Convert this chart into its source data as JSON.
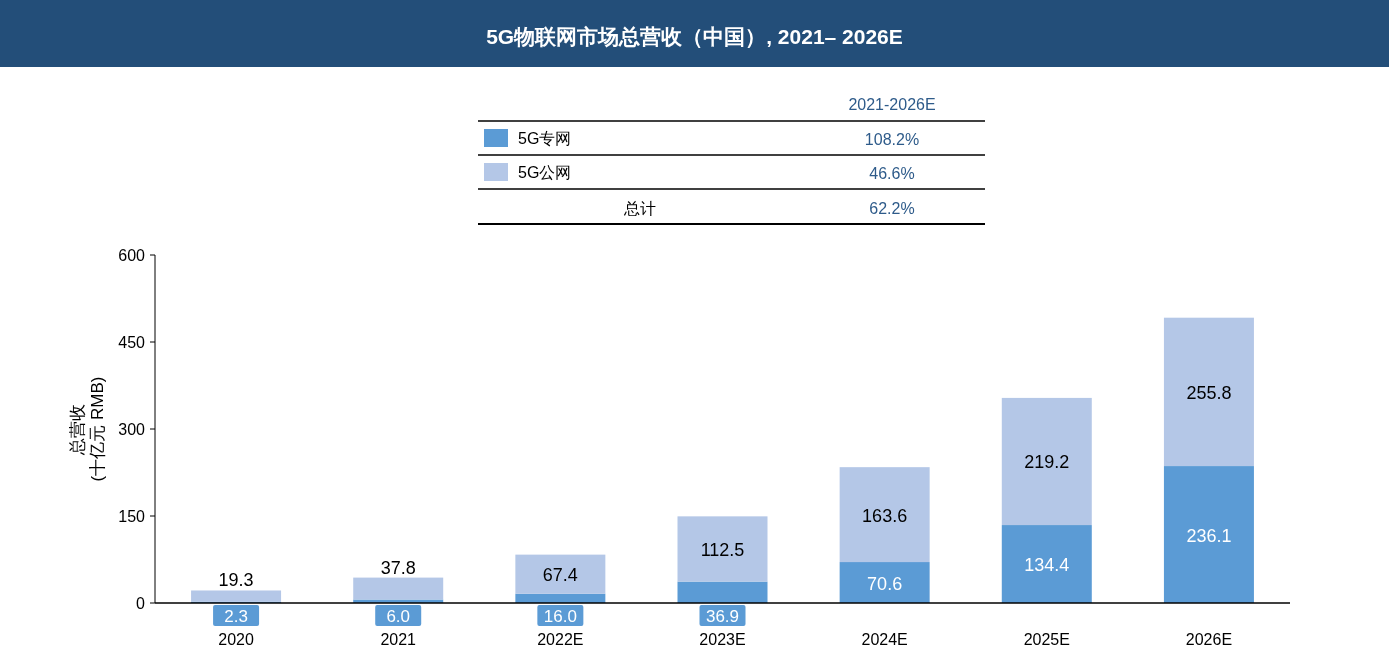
{
  "chart_data": {
    "type": "bar",
    "title": "5G物联网市场总营收（中国）, 2021– 2026E",
    "ylabel": "总营收 (十亿元 RMB)",
    "categories": [
      "2020",
      "2021",
      "2022E",
      "2023E",
      "2024E",
      "2025E",
      "2026E"
    ],
    "series": [
      {
        "name": "5G专网",
        "color": "#5b9bd5",
        "values": [
          2.3,
          6.0,
          16.0,
          36.9,
          70.6,
          134.4,
          236.1
        ],
        "value_labels": [
          "2.3",
          "6.0",
          "16.0",
          "36.9",
          "70.6",
          "134.4",
          "236.1"
        ]
      },
      {
        "name": "5G公网",
        "color": "#b4c7e7",
        "values": [
          19.3,
          37.8,
          67.4,
          112.5,
          163.6,
          219.2,
          255.8
        ],
        "value_labels": [
          "19.3",
          "37.8",
          "67.4",
          "112.5",
          "163.6",
          "219.2",
          "255.8"
        ]
      }
    ],
    "stacked": true,
    "ylim": [
      0,
      600
    ],
    "yticks": [
      0,
      150,
      300,
      450,
      600
    ],
    "legend": "top",
    "annotations": [
      "2021-2026E",
      "108.2%",
      "46.6%",
      "总计",
      "62.2%"
    ]
  }
}
